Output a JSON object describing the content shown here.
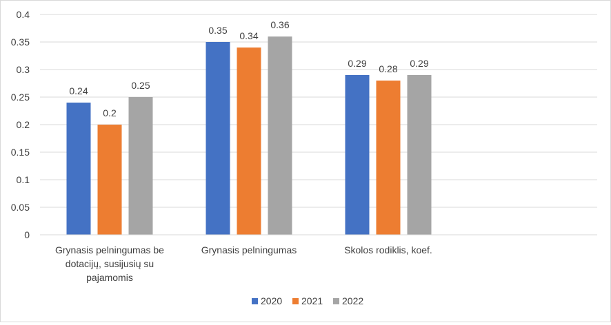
{
  "chart_data": {
    "type": "bar",
    "title": "",
    "xlabel": "",
    "ylabel": "",
    "categories": [
      [
        "Grynasis pelningumas be",
        "dotacijų, susijusių su",
        "pajamomis"
      ],
      [
        "Grynasis pelningumas"
      ],
      [
        "Skolos rodiklis, koef."
      ],
      []
    ],
    "series": [
      {
        "name": "2020",
        "color": "#4472C4",
        "values": [
          0.24,
          0.35,
          0.29,
          null
        ]
      },
      {
        "name": "2021",
        "color": "#ED7D31",
        "values": [
          0.2,
          0.34,
          0.28,
          null
        ]
      },
      {
        "name": "2022",
        "color": "#A5A5A5",
        "values": [
          0.25,
          0.36,
          0.29,
          null
        ]
      }
    ],
    "ylim": [
      0,
      0.4
    ],
    "yticks": [
      "0",
      "0.05",
      "0.1",
      "0.15",
      "0.2",
      "0.25",
      "0.3",
      "0.35",
      "0.4"
    ],
    "grid": true,
    "legend": "bottom",
    "data_labels": true
  }
}
